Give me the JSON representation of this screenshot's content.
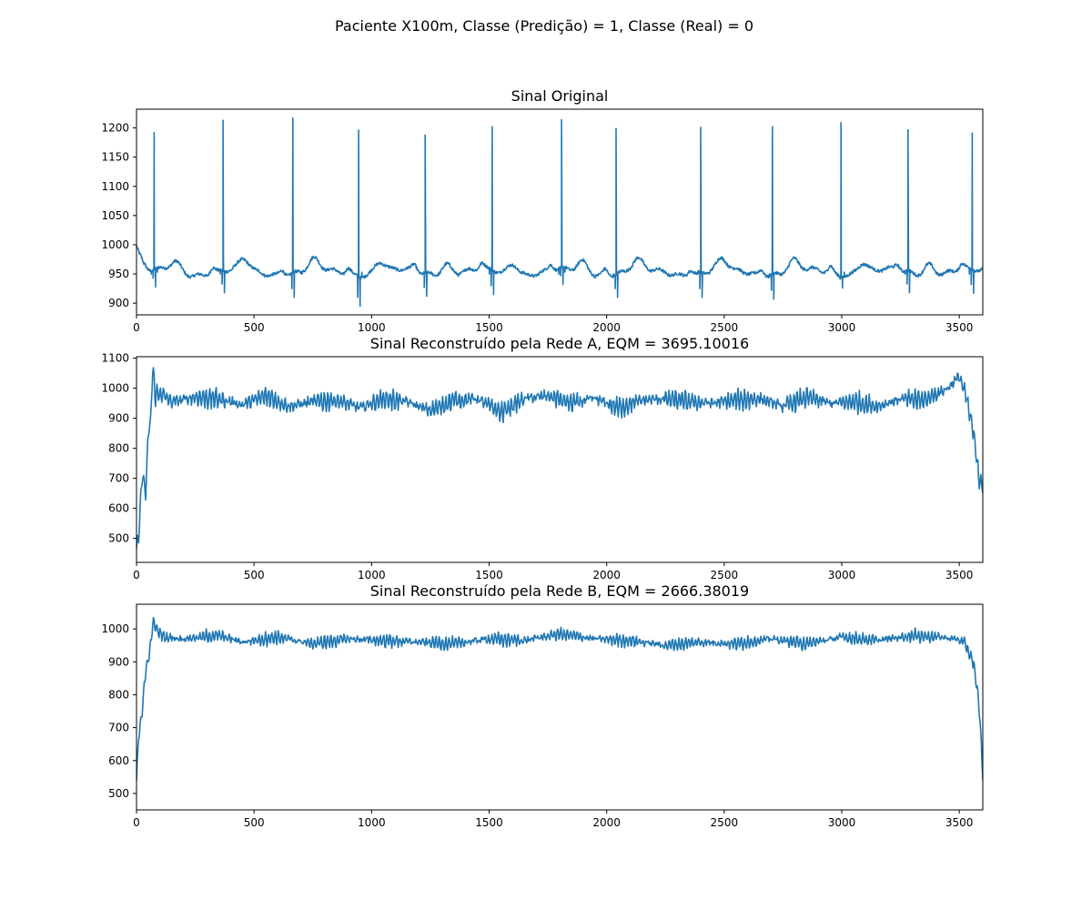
{
  "figure": {
    "suptitle": "Paciente X100m, Classe (Predição) = 1, Classe (Real) = 0",
    "line_color": "#1f77b4"
  },
  "chart_data": [
    {
      "type": "line",
      "title": "Sinal Original",
      "xlim": [
        0,
        3600
      ],
      "ylim": [
        880,
        1232
      ],
      "xticks": [
        0,
        500,
        1000,
        1500,
        2000,
        2500,
        3000,
        3500
      ],
      "yticks": [
        900,
        950,
        1000,
        1050,
        1100,
        1150,
        1200
      ],
      "signal": {
        "kind": "ecg",
        "baseline": 953,
        "beat_positions": [
          75,
          368,
          665,
          945,
          1228,
          1513,
          1808,
          2040,
          2400,
          2705,
          2997,
          3282,
          3555
        ],
        "beat_peaks": [
          1192,
          1213,
          1217,
          1196,
          1188,
          1202,
          1214,
          1199,
          1201,
          1202,
          1209,
          1197,
          1191
        ],
        "beat_troughs": [
          928,
          918,
          910,
          895,
          912,
          915,
          932,
          910,
          910,
          907,
          926,
          918,
          917
        ]
      }
    },
    {
      "type": "line",
      "title": "Sinal Reconstruído pela Rede A, EQM = 3695.10016",
      "xlim": [
        0,
        3600
      ],
      "ylim": [
        420,
        1105
      ],
      "xticks": [
        0,
        500,
        1000,
        1500,
        2000,
        2500,
        3000,
        3500
      ],
      "yticks": [
        500,
        600,
        700,
        800,
        900,
        1000,
        1100
      ],
      "signal": {
        "kind": "reconstruction",
        "envelope_x": [
          0,
          8,
          25,
          40,
          50,
          60,
          68,
          80,
          100,
          150,
          250,
          350,
          450,
          550,
          650,
          750,
          850,
          950,
          1050,
          1150,
          1250,
          1350,
          1450,
          1550,
          1650,
          1750,
          1850,
          1950,
          2050,
          2150,
          2250,
          2350,
          2450,
          2550,
          2650,
          2750,
          2850,
          2950,
          3050,
          3150,
          3250,
          3350,
          3450,
          3500,
          3530,
          3560,
          3585,
          3600
        ],
        "envelope_y": [
          470,
          500,
          720,
          640,
          860,
          880,
          1070,
          975,
          985,
          955,
          970,
          965,
          945,
          975,
          940,
          955,
          960,
          935,
          965,
          955,
          925,
          960,
          965,
          920,
          965,
          975,
          950,
          965,
          935,
          960,
          965,
          955,
          950,
          960,
          965,
          940,
          970,
          950,
          955,
          940,
          965,
          960,
          1000,
          1040,
          970,
          850,
          700,
          680
        ],
        "oscillation": 30
      }
    },
    {
      "type": "line",
      "title": "Sinal Reconstruído pela Rede B, EQM = 2666.38019",
      "xlim": [
        0,
        3600
      ],
      "ylim": [
        450,
        1075
      ],
      "xticks": [
        0,
        500,
        1000,
        1500,
        2000,
        2500,
        3000,
        3500
      ],
      "yticks": [
        500,
        600,
        700,
        800,
        900,
        1000
      ],
      "signal": {
        "kind": "reconstruction",
        "envelope_x": [
          0,
          8,
          25,
          40,
          55,
          70,
          90,
          120,
          200,
          350,
          450,
          600,
          750,
          900,
          1050,
          1200,
          1350,
          1500,
          1650,
          1800,
          1950,
          2100,
          2250,
          2400,
          2550,
          2700,
          2850,
          3000,
          3150,
          3300,
          3420,
          3480,
          3520,
          3560,
          3585,
          3600
        ],
        "envelope_y": [
          540,
          660,
          760,
          880,
          920,
          1020,
          995,
          975,
          970,
          980,
          960,
          975,
          955,
          970,
          965,
          960,
          955,
          970,
          965,
          985,
          970,
          965,
          950,
          960,
          955,
          970,
          955,
          975,
          965,
          980,
          975,
          970,
          960,
          900,
          760,
          560
        ],
        "oscillation": 18
      }
    }
  ]
}
